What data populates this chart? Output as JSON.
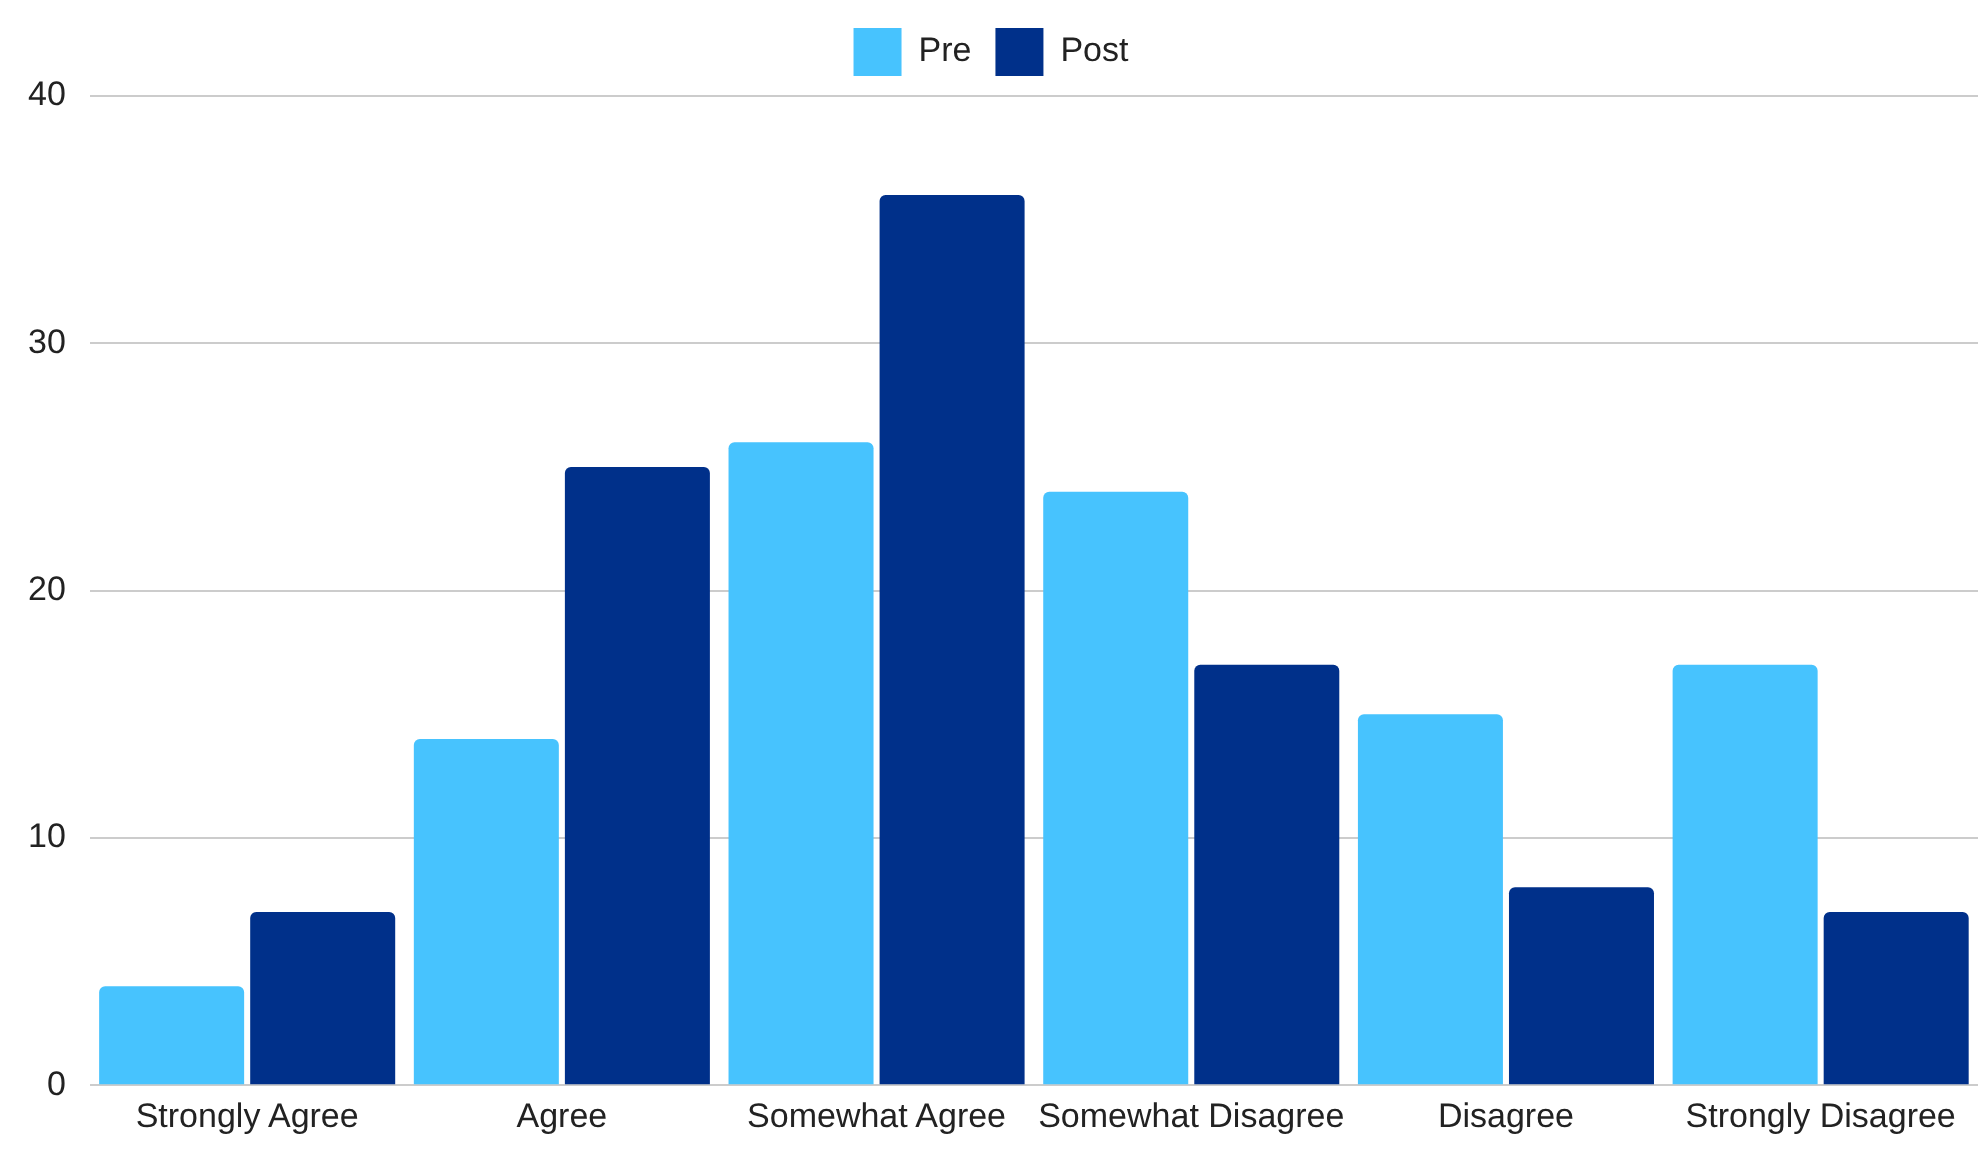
{
  "chart_data": {
    "type": "bar",
    "categories": [
      "Strongly Agree",
      "Agree",
      "Somewhat Agree",
      "Somewhat Disagree",
      "Disagree",
      "Strongly Disagree"
    ],
    "series": [
      {
        "name": "Pre",
        "color": "#47c3fe",
        "values": [
          4,
          14,
          26,
          24,
          15,
          17
        ]
      },
      {
        "name": "Post",
        "color": "#00308a",
        "values": [
          7,
          25,
          36,
          17,
          8,
          7
        ]
      }
    ],
    "ylim": [
      0,
      40
    ],
    "yticks": [
      0,
      10,
      20,
      30,
      40
    ],
    "grid": "y",
    "legend": "top"
  }
}
